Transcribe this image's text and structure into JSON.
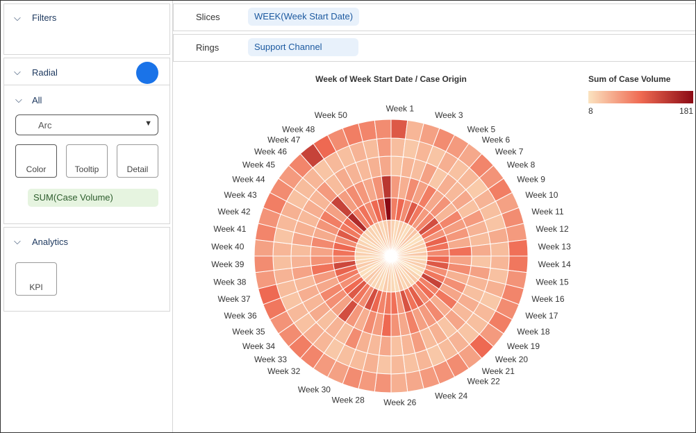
{
  "ui": {
    "filters": "Filters",
    "radial": "Radial",
    "all": "All",
    "arc": "Arc",
    "color": "Color",
    "tooltip": "Tooltip",
    "detail": "Detail",
    "measure": "SUM(Case Volume)",
    "analytics": "Analytics",
    "kpi": "KPI",
    "slices_label": "Slices",
    "slices_field": "WEEK(Week Start Date)",
    "rings_label": "Rings",
    "rings_field": "Support Channel"
  },
  "chart_data": {
    "type": "radial-heatmap",
    "title": "Week of Week Start Date  /  Case Origin",
    "categories": [
      "Week 1",
      null,
      "Week 3",
      null,
      "Week 5",
      "Week 6",
      "Week 7",
      "Week 8",
      "Week 9",
      "Week 10",
      "Week 11",
      "Week 12",
      "Week 13",
      "Week 14",
      "Week 15",
      "Week 16",
      "Week 17",
      "Week 18",
      "Week 19",
      "Week 20",
      "Week 21",
      "Week 22",
      null,
      "Week 24",
      null,
      "Week 26",
      null,
      "Week 28",
      null,
      "Week 30",
      null,
      "Week 32",
      "Week 33",
      "Week 34",
      "Week 35",
      "Week 36",
      "Week 37",
      "Week 38",
      "Week 39",
      "Week 40",
      "Week 41",
      "Week 42",
      "Week 43",
      "Week 44",
      "Week 45",
      "Week 46",
      "Week 47",
      "Week 48",
      null,
      "Week 50",
      null,
      null
    ],
    "series": [
      {
        "values": [
          20,
          15,
          22,
          18,
          12,
          25,
          30,
          14,
          10,
          18,
          22,
          16,
          28,
          12,
          20,
          24,
          15,
          8,
          19,
          26,
          14,
          22,
          18,
          30,
          12,
          16,
          21,
          25,
          13,
          19,
          17,
          23,
          28,
          15,
          11,
          20,
          26,
          18,
          14,
          22,
          16,
          27,
          19,
          13,
          24,
          18,
          21,
          15,
          29,
          17,
          22,
          35
        ]
      },
      {
        "values": [
          80,
          95,
          70,
          110,
          85,
          60,
          75,
          120,
          90,
          65,
          100,
          88,
          72,
          95,
          110,
          68,
          85,
          130,
          78,
          92,
          70,
          105,
          88,
          115,
          62,
          90,
          84,
          76,
          98,
          120,
          70,
          86,
          110,
          94,
          68,
          82,
          100,
          125,
          74,
          88,
          96,
          70,
          108,
          84,
          92,
          150,
          78,
          88,
          70,
          95,
          110,
          181
        ]
      },
      {
        "values": [
          60,
          45,
          70,
          55,
          80,
          50,
          65,
          40,
          75,
          58,
          62,
          48,
          90,
          54,
          70,
          44,
          68,
          52,
          85,
          47,
          72,
          60,
          56,
          78,
          50,
          66,
          95,
          58,
          70,
          46,
          62,
          120,
          55,
          68,
          74,
          50,
          60,
          88,
          66,
          54,
          72,
          48,
          64,
          80,
          56,
          130,
          58,
          70,
          62,
          50,
          66,
          140
        ]
      },
      {
        "values": [
          30,
          40,
          35,
          55,
          28,
          45,
          38,
          50,
          32,
          60,
          42,
          36,
          48,
          30,
          55,
          40,
          34,
          46,
          38,
          52,
          30,
          44,
          36,
          58,
          40,
          32,
          50,
          38,
          44,
          70,
          36,
          42,
          34,
          48,
          40,
          46,
          38,
          54,
          42,
          36,
          50,
          44,
          38,
          46,
          40,
          60,
          36,
          48,
          42,
          38,
          44,
          50
        ]
      },
      {
        "values": [
          35,
          28,
          40,
          30,
          45,
          32,
          38,
          26,
          42,
          34,
          30,
          48,
          36,
          40,
          32,
          44,
          28,
          38,
          34,
          30,
          42,
          36,
          28,
          40,
          32,
          38,
          30,
          44,
          36,
          34,
          28,
          40,
          46,
          32,
          38,
          30,
          36,
          42,
          34,
          40,
          30,
          38,
          44,
          32,
          36,
          40,
          30,
          38,
          34,
          42,
          36,
          60
        ]
      },
      {
        "values": [
          110,
          40,
          55,
          70,
          60,
          50,
          75,
          65,
          80,
          55,
          70,
          60,
          90,
          85,
          65,
          75,
          70,
          80,
          60,
          95,
          55,
          70,
          65,
          60,
          50,
          45,
          65,
          60,
          70,
          55,
          60,
          75,
          80,
          70,
          65,
          85,
          95,
          60,
          70,
          55,
          75,
          65,
          80,
          70,
          60,
          75,
          130,
          95,
          70,
          80,
          75,
          70
        ]
      }
    ],
    "color_scale": [
      "#fbe3c0",
      "#ef6a52",
      "#8b0a14"
    ],
    "clim": [
      8,
      181
    ],
    "legend": {
      "title": "Sum of Case Volume",
      "ticks": [
        8,
        181
      ]
    }
  }
}
